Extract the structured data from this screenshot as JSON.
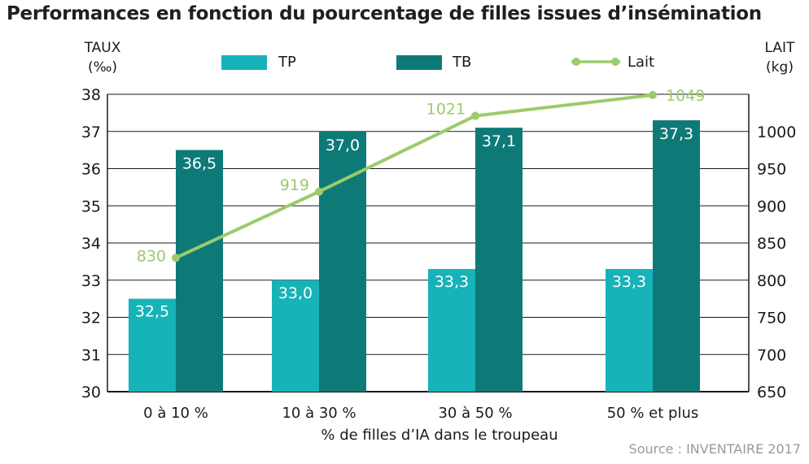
{
  "title": "Performances en fonction du pourcentage de filles issues d’insémination",
  "source": "Source : INVENTAIRE 2017",
  "left_axis": {
    "line1": "TAUX",
    "line2": "(‰)"
  },
  "right_axis": {
    "line1": "LAIT",
    "line2": "(kg)"
  },
  "legend": {
    "tp": "TP",
    "tb": "TB",
    "lait": "Lait"
  },
  "colors": {
    "tp": "#16b3b8",
    "tb": "#0d7a78",
    "lait": "#9bcb6b",
    "grid": "#1a1a1a"
  },
  "chart_data": {
    "type": "bar",
    "title": "Performances en fonction du pourcentage de filles issues d’insémination",
    "xlabel": "% de filles d’IA dans le troupeau",
    "categories": [
      "0 à 10 %",
      "10 à 30 %",
      "30 à 50 %",
      "50 % et plus"
    ],
    "series": [
      {
        "name": "TP",
        "type": "bar",
        "axis": "left",
        "values": [
          32.5,
          33.0,
          33.3,
          33.3
        ],
        "labels": [
          "32,5",
          "33,0",
          "33,3",
          "33,3"
        ]
      },
      {
        "name": "TB",
        "type": "bar",
        "axis": "left",
        "values": [
          36.5,
          37.0,
          37.1,
          37.3
        ],
        "labels": [
          "36,5",
          "37,0",
          "37,1",
          "37,3"
        ]
      },
      {
        "name": "Lait",
        "type": "line",
        "axis": "right",
        "values": [
          830,
          919,
          1021,
          1049
        ],
        "labels": [
          "830",
          "919",
          "1021",
          "1049"
        ]
      }
    ],
    "left_axis": {
      "label": "TAUX (‰)",
      "ylim": [
        30,
        38
      ],
      "ticks": [
        "30",
        "31",
        "32",
        "33",
        "34",
        "35",
        "36",
        "37",
        "38"
      ]
    },
    "right_axis": {
      "label": "LAIT (kg)",
      "ylim": [
        650,
        1050
      ],
      "ticks": [
        "650",
        "700",
        "750",
        "800",
        "850",
        "900",
        "950",
        "1000"
      ]
    },
    "grid": true,
    "legend_position": "top"
  }
}
